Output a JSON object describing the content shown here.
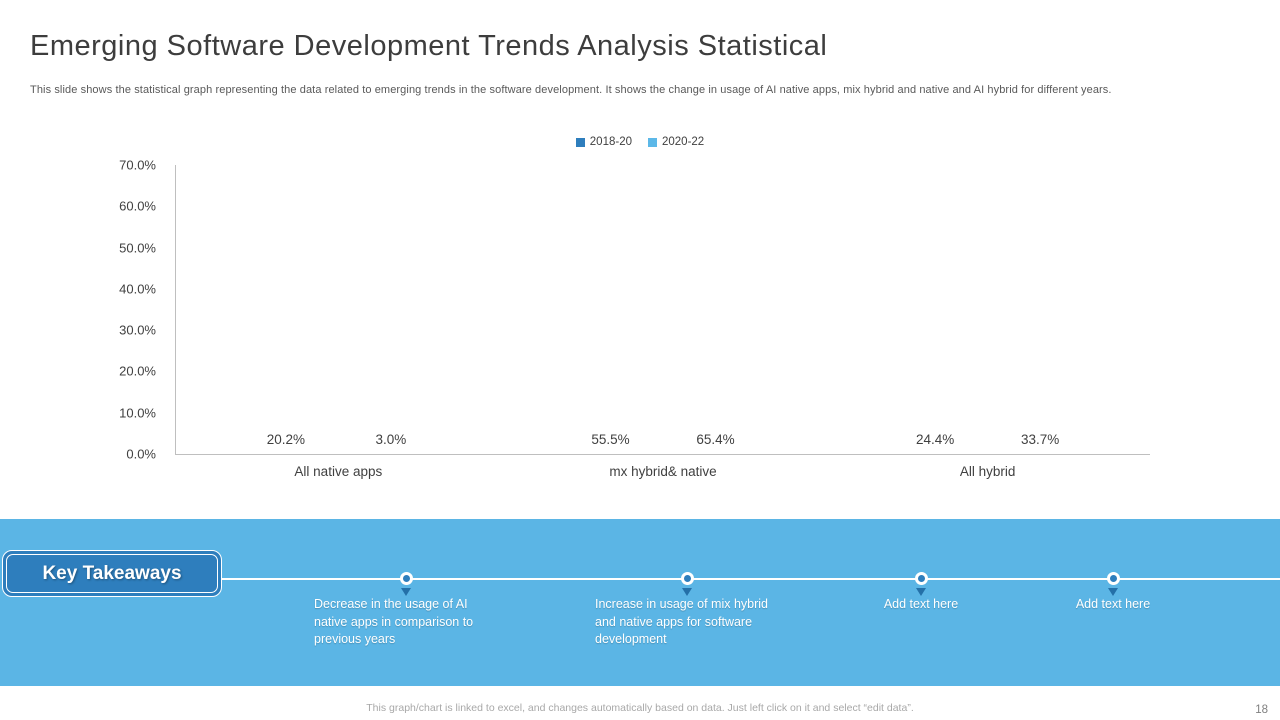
{
  "slide": {
    "title": "Emerging Software Development Trends Analysis Statistical",
    "subtitle": "This slide shows the statistical graph representing the data related to emerging trends in the software development. It shows the change in usage of AI native apps, mix hybrid and native and AI hybrid for different years.",
    "footer_note": "This graph/chart is linked to excel, and changes automatically based on data. Just left click on it and select “edit data”.",
    "page_number": "18"
  },
  "chart_data": {
    "type": "bar",
    "categories": [
      "All native apps",
      "mx hybrid& native",
      "All hybrid"
    ],
    "series": [
      {
        "name": "2018-20",
        "color": "#2e7ebd",
        "values": [
          20.2,
          55.5,
          24.4
        ],
        "labels": [
          "20.2%",
          "55.5%",
          "24.4%"
        ]
      },
      {
        "name": "2020-22",
        "color": "#5cb8e8",
        "values": [
          3.0,
          65.4,
          33.7
        ],
        "labels": [
          "3.0%",
          "65.4%",
          "33.7%"
        ]
      }
    ],
    "ylim": [
      0,
      70
    ],
    "y_ticks": [
      "0.0%",
      "10.0%",
      "20.0%",
      "30.0%",
      "40.0%",
      "50.0%",
      "60.0%",
      "70.0%"
    ],
    "grid": false,
    "legend_position": "top"
  },
  "takeaways": {
    "heading": "Key Takeaways",
    "band_color": "#5bb5e5",
    "banner_color": "#2e7ebd",
    "items": [
      {
        "text": "Decrease in the usage of AI native apps in comparison to previous years",
        "placeholder": false
      },
      {
        "text": "Increase in usage of mix hybrid and native apps for software development",
        "placeholder": false
      },
      {
        "text": "Add text here",
        "placeholder": true
      },
      {
        "text": "Add text here",
        "placeholder": true
      }
    ]
  }
}
